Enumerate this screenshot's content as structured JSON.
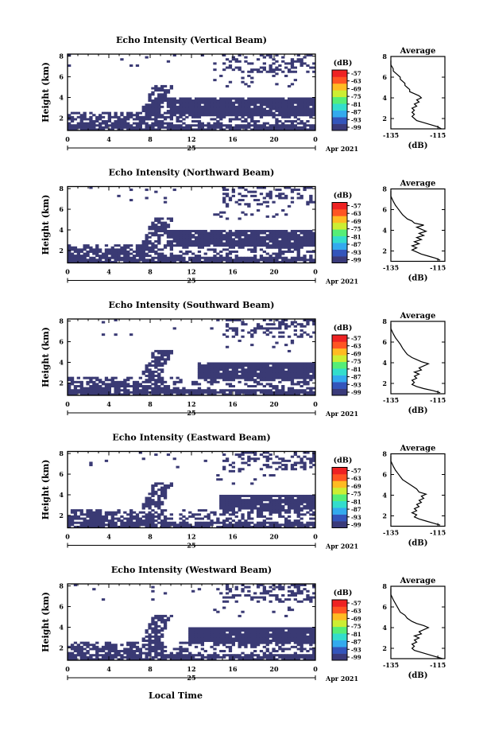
{
  "figure": {
    "month_label": "Apr 2021",
    "day_label": "25",
    "xlabel": "Local Time",
    "colorbar_unit": "(dB)",
    "colorbar_ticks": [
      "-57",
      "-63",
      "-69",
      "-75",
      "-81",
      "-87",
      "-93",
      "-99"
    ],
    "colorbar_colors": [
      "#3a3a7a",
      "#3355bb",
      "#33aaee",
      "#33ddcc",
      "#55ee77",
      "#ccee33",
      "#ffbb22",
      "#ff5522",
      "#ee2222"
    ],
    "fill_color": "#3a3a74"
  },
  "chart_data": [
    {
      "type": "heatmap",
      "title": "Echo Intensity (Vertical Beam)",
      "ylabel": "Height (km)",
      "x_ticks": [
        "0",
        "4",
        "8",
        "12",
        "16",
        "20",
        "0"
      ],
      "xlim": [
        0,
        24
      ],
      "ylim": [
        0.8,
        8.2
      ],
      "y_ticks": [
        "2",
        "4",
        "6",
        "8"
      ],
      "colorbar_range": [
        -99,
        -57
      ],
      "main_layer": {
        "start": 9.5,
        "end": 24,
        "bottom": 2.1,
        "top": 4.0
      },
      "profile": {
        "type": "line",
        "title": "Average",
        "xlabel": "(dB)",
        "x_ticks": [
          "-135",
          "-115"
        ],
        "xlim": [
          -135,
          -112
        ],
        "ylim": [
          1,
          8
        ],
        "y_ticks": [
          "2",
          "4",
          "6",
          "8"
        ],
        "points": [
          [
            -113.5,
            1.0
          ],
          [
            -115,
            1.2
          ],
          [
            -118,
            1.4
          ],
          [
            -121,
            1.6
          ],
          [
            -124,
            1.8
          ],
          [
            -125,
            2.0
          ],
          [
            -126,
            2.2
          ],
          [
            -125,
            2.4
          ],
          [
            -126,
            2.6
          ],
          [
            -125,
            2.8
          ],
          [
            -126,
            3.0
          ],
          [
            -124,
            3.2
          ],
          [
            -125,
            3.4
          ],
          [
            -123,
            3.6
          ],
          [
            -124,
            3.8
          ],
          [
            -122,
            4.0
          ],
          [
            -123,
            4.2
          ],
          [
            -125,
            4.4
          ],
          [
            -127,
            4.6
          ],
          [
            -127,
            4.8
          ],
          [
            -128,
            5.0
          ],
          [
            -129,
            5.2
          ],
          [
            -129,
            5.4
          ],
          [
            -130,
            5.6
          ],
          [
            -131,
            5.8
          ],
          [
            -131,
            6.0
          ],
          [
            -132,
            6.2
          ],
          [
            -133,
            6.4
          ],
          [
            -134,
            6.6
          ],
          [
            -134,
            6.8
          ],
          [
            -135,
            7.2
          ],
          [
            -135,
            7.6
          ]
        ]
      }
    },
    {
      "type": "heatmap",
      "title": "Echo Intensity (Northward Beam)",
      "ylabel": "Height (km)",
      "x_ticks": [
        "0",
        "4",
        "8",
        "12",
        "16",
        "20",
        "0"
      ],
      "xlim": [
        0,
        24
      ],
      "ylim": [
        0.8,
        8.2
      ],
      "y_ticks": [
        "2",
        "4",
        "6",
        "8"
      ],
      "colorbar_range": [
        -99,
        -57
      ],
      "main_layer": {
        "start": 9.5,
        "end": 24,
        "bottom": 2.4,
        "top": 4.0
      },
      "profile": {
        "type": "line",
        "title": "Average",
        "xlabel": "(dB)",
        "x_ticks": [
          "-135",
          "-115"
        ],
        "xlim": [
          -135,
          -112
        ],
        "ylim": [
          1,
          8
        ],
        "y_ticks": [
          "2",
          "4",
          "6",
          "8"
        ],
        "points": [
          [
            -114,
            1.1
          ],
          [
            -116,
            1.3
          ],
          [
            -119,
            1.5
          ],
          [
            -122,
            1.7
          ],
          [
            -124,
            1.9
          ],
          [
            -126,
            2.1
          ],
          [
            -124,
            2.3
          ],
          [
            -126,
            2.5
          ],
          [
            -123,
            2.7
          ],
          [
            -125,
            2.9
          ],
          [
            -122,
            3.1
          ],
          [
            -124,
            3.3
          ],
          [
            -121,
            3.5
          ],
          [
            -123,
            3.7
          ],
          [
            -120,
            3.9
          ],
          [
            -122,
            4.1
          ],
          [
            -124,
            4.3
          ],
          [
            -121,
            4.5
          ],
          [
            -125,
            4.7
          ],
          [
            -126,
            4.9
          ],
          [
            -128,
            5.1
          ],
          [
            -129,
            5.3
          ],
          [
            -130,
            5.5
          ],
          [
            -131,
            5.8
          ],
          [
            -132,
            6.1
          ],
          [
            -133,
            6.4
          ],
          [
            -134,
            6.8
          ],
          [
            -135,
            7.3
          ],
          [
            -135,
            7.8
          ]
        ]
      }
    },
    {
      "type": "heatmap",
      "title": "Echo Intensity (Southward Beam)",
      "ylabel": "Height (km)",
      "x_ticks": [
        "0",
        "4",
        "8",
        "12",
        "16",
        "20",
        "0"
      ],
      "xlim": [
        0,
        24
      ],
      "ylim": [
        0.8,
        8.2
      ],
      "y_ticks": [
        "2",
        "4",
        "6",
        "8"
      ],
      "colorbar_range": [
        -99,
        -57
      ],
      "main_layer": {
        "start": 12.5,
        "end": 24,
        "bottom": 2.4,
        "top": 4.0
      },
      "profile": {
        "type": "line",
        "title": "Average",
        "xlabel": "(dB)",
        "x_ticks": [
          "-135",
          "-115"
        ],
        "xlim": [
          -135,
          -112
        ],
        "ylim": [
          1,
          8
        ],
        "y_ticks": [
          "2",
          "4",
          "6",
          "8"
        ],
        "points": [
          [
            -114,
            1.1
          ],
          [
            -117,
            1.3
          ],
          [
            -121,
            1.5
          ],
          [
            -124,
            1.7
          ],
          [
            -126,
            1.9
          ],
          [
            -125,
            2.1
          ],
          [
            -126,
            2.3
          ],
          [
            -124,
            2.5
          ],
          [
            -125,
            2.7
          ],
          [
            -123,
            2.9
          ],
          [
            -125,
            3.1
          ],
          [
            -122,
            3.3
          ],
          [
            -123,
            3.5
          ],
          [
            -121,
            3.7
          ],
          [
            -119,
            3.9
          ],
          [
            -122,
            4.1
          ],
          [
            -124,
            4.3
          ],
          [
            -126,
            4.5
          ],
          [
            -128,
            4.8
          ],
          [
            -129,
            5.1
          ],
          [
            -130,
            5.4
          ],
          [
            -131,
            5.8
          ],
          [
            -132,
            6.1
          ],
          [
            -133,
            6.4
          ],
          [
            -134,
            6.8
          ],
          [
            -135,
            7.3
          ],
          [
            -135,
            7.8
          ]
        ]
      }
    },
    {
      "type": "heatmap",
      "title": "Echo Intensity (Eastward Beam)",
      "ylabel": "Height (km)",
      "x_ticks": [
        "0",
        "4",
        "8",
        "12",
        "16",
        "20",
        "0"
      ],
      "xlim": [
        0,
        24
      ],
      "ylim": [
        0.8,
        8.2
      ],
      "y_ticks": [
        "2",
        "4",
        "6",
        "8"
      ],
      "colorbar_range": [
        -99,
        -57
      ],
      "main_layer": {
        "start": 14.5,
        "end": 24,
        "bottom": 2.6,
        "top": 4.0
      },
      "profile": {
        "type": "line",
        "title": "Average",
        "xlabel": "(dB)",
        "x_ticks": [
          "-135",
          "-115"
        ],
        "xlim": [
          -135,
          -112
        ],
        "ylim": [
          1,
          8
        ],
        "y_ticks": [
          "2",
          "4",
          "6",
          "8"
        ],
        "points": [
          [
            -114,
            1.1
          ],
          [
            -117,
            1.3
          ],
          [
            -120,
            1.5
          ],
          [
            -123,
            1.7
          ],
          [
            -125,
            1.9
          ],
          [
            -124,
            2.1
          ],
          [
            -126,
            2.3
          ],
          [
            -124,
            2.5
          ],
          [
            -125,
            2.7
          ],
          [
            -123,
            2.9
          ],
          [
            -124,
            3.1
          ],
          [
            -122,
            3.3
          ],
          [
            -123,
            3.5
          ],
          [
            -121,
            3.7
          ],
          [
            -122,
            3.9
          ],
          [
            -120,
            4.1
          ],
          [
            -123,
            4.3
          ],
          [
            -124,
            4.6
          ],
          [
            -126,
            4.9
          ],
          [
            -128,
            5.2
          ],
          [
            -130,
            5.5
          ],
          [
            -131,
            5.8
          ],
          [
            -132,
            6.1
          ],
          [
            -133,
            6.4
          ],
          [
            -134,
            6.8
          ],
          [
            -135,
            7.3
          ],
          [
            -135,
            7.8
          ]
        ]
      }
    },
    {
      "type": "heatmap",
      "title": "Echo Intensity (Westward Beam)",
      "ylabel": "Height (km)",
      "x_ticks": [
        "0",
        "4",
        "8",
        "12",
        "16",
        "20",
        "0"
      ],
      "xlim": [
        0,
        24
      ],
      "ylim": [
        0.8,
        8.2
      ],
      "y_ticks": [
        "2",
        "4",
        "6",
        "8"
      ],
      "colorbar_range": [
        -99,
        -57
      ],
      "main_layer": {
        "start": 11.5,
        "end": 24,
        "bottom": 2.4,
        "top": 4.0
      },
      "profile": {
        "type": "line",
        "title": "Average",
        "xlabel": "(dB)",
        "x_ticks": [
          "-135",
          "-115"
        ],
        "xlim": [
          -135,
          -112
        ],
        "ylim": [
          1,
          8
        ],
        "y_ticks": [
          "2",
          "4",
          "6",
          "8"
        ],
        "points": [
          [
            -113,
            1.0
          ],
          [
            -116,
            1.2
          ],
          [
            -119,
            1.4
          ],
          [
            -122,
            1.6
          ],
          [
            -125,
            1.8
          ],
          [
            -126,
            2.0
          ],
          [
            -125,
            2.2
          ],
          [
            -126,
            2.4
          ],
          [
            -124,
            2.6
          ],
          [
            -125,
            2.8
          ],
          [
            -123,
            3.0
          ],
          [
            -125,
            3.2
          ],
          [
            -122,
            3.4
          ],
          [
            -123,
            3.6
          ],
          [
            -121,
            3.8
          ],
          [
            -119,
            4.0
          ],
          [
            -121,
            4.2
          ],
          [
            -124,
            4.4
          ],
          [
            -126,
            4.6
          ],
          [
            -128,
            4.9
          ],
          [
            -129,
            5.2
          ],
          [
            -131,
            5.5
          ],
          [
            -132,
            5.9
          ],
          [
            -133,
            6.3
          ],
          [
            -134,
            6.7
          ],
          [
            -135,
            7.2
          ],
          [
            -135,
            7.8
          ]
        ]
      }
    }
  ]
}
